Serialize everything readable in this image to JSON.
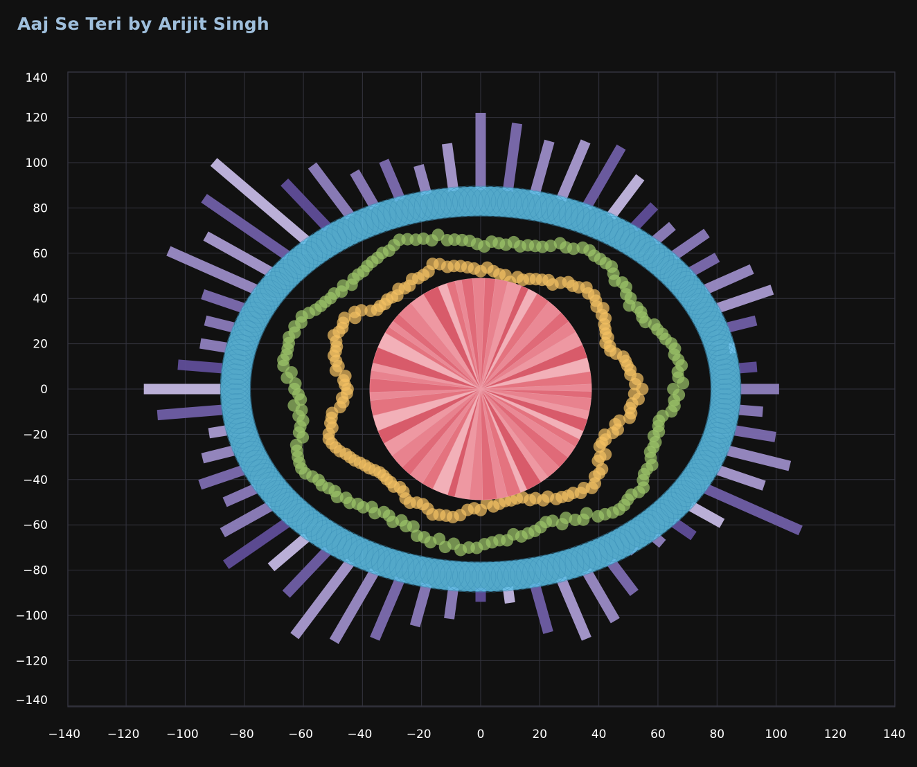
{
  "chart_data": {
    "type": "scatter",
    "title": "Aaj Se Teri  by Arijit Singh",
    "xlabel": "",
    "ylabel": "",
    "xlim": [
      -140,
      140
    ],
    "ylim": [
      -140,
      140
    ],
    "grid": true,
    "x_ticks": [
      -140,
      -120,
      -100,
      -80,
      -60,
      -40,
      -20,
      0,
      20,
      40,
      60,
      80,
      100,
      120,
      140
    ],
    "y_ticks": [
      140,
      120,
      100,
      80,
      60,
      40,
      20,
      0,
      -20,
      -40,
      -60,
      -80,
      -100,
      -120,
      -140
    ],
    "layers": {
      "radial_bars": {
        "color": "#8a78b8",
        "count": 60,
        "inner_radius": 88,
        "outer_radius": [
          122,
          118,
          112,
          115,
          117,
          108,
          100,
          97,
          103,
          99,
          106,
          108,
          98,
          86,
          94,
          101,
          96,
          102,
          110,
          105,
          125,
          101,
          97,
          92,
          89,
          104,
          112,
          116,
          110,
          95,
          94,
          102,
          107,
          116,
          122,
          126,
          112,
          106,
          116,
          108,
          100,
          104,
          99,
          94,
          110,
          114,
          103,
          97,
          98,
          103,
          122,
          115,
          126,
          135,
          113,
          114,
          105,
          106,
          101,
          109
        ]
      },
      "blue_ring": {
        "color": "#5fc3ea",
        "center": [
          0,
          0
        ],
        "radius_outer": 89,
        "radius_inner": 77,
        "points": 240
      },
      "green_ring": {
        "color": "#9cc46a",
        "base_radius": 67,
        "points": 170
      },
      "yellow_ring": {
        "color": "#f4c162",
        "base_radius": 53,
        "points": 160
      },
      "pie": {
        "color": "#e8747f",
        "radius": 49,
        "slices": 60
      }
    }
  }
}
